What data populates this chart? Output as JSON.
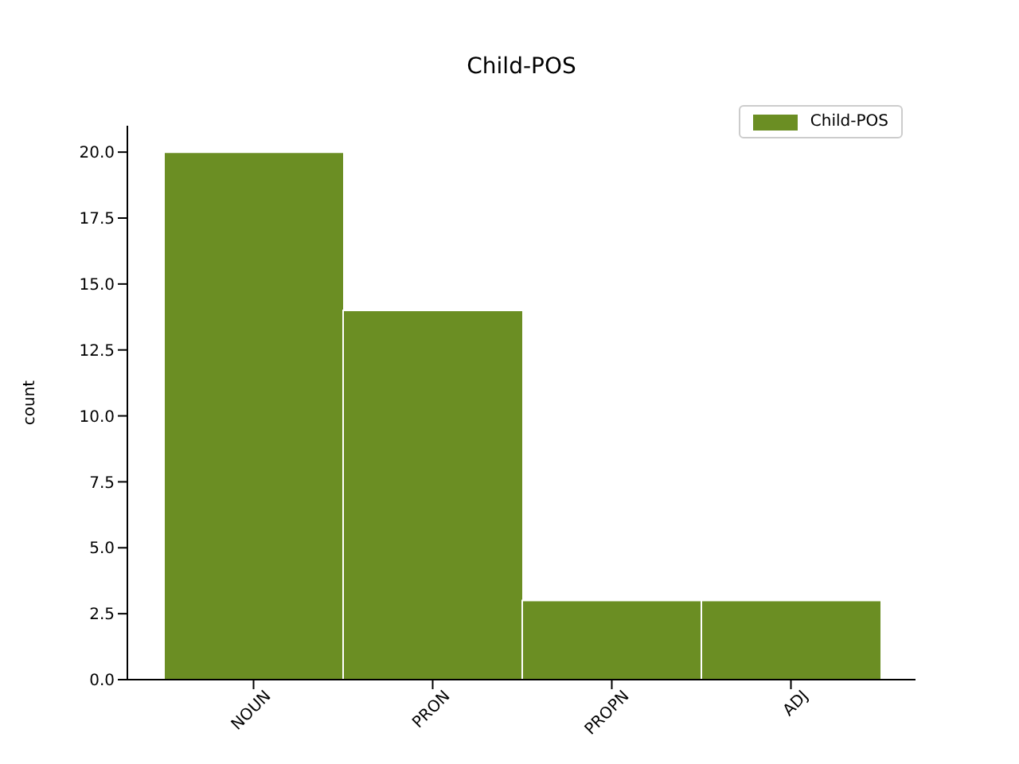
{
  "chart_data": {
    "type": "bar",
    "title": "Child-POS",
    "ylabel": "count",
    "categories": [
      "NOUN",
      "PRON",
      "PROPN",
      "ADJ"
    ],
    "series": [
      {
        "name": "Child-POS",
        "color": "#6b8e23",
        "values": [
          20,
          14,
          3,
          3
        ]
      }
    ],
    "ylim": [
      0,
      21
    ],
    "yticks": [
      {
        "value": 0,
        "label": "0.0"
      },
      {
        "value": 2.5,
        "label": "2.5"
      },
      {
        "value": 5,
        "label": "5.0"
      },
      {
        "value": 7.5,
        "label": "7.5"
      },
      {
        "value": 10,
        "label": "10.0"
      },
      {
        "value": 12.5,
        "label": "12.5"
      },
      {
        "value": 15,
        "label": "15.0"
      },
      {
        "value": 17.5,
        "label": "17.5"
      },
      {
        "value": 20,
        "label": "20.0"
      }
    ],
    "grid": false,
    "legend": "top right"
  }
}
